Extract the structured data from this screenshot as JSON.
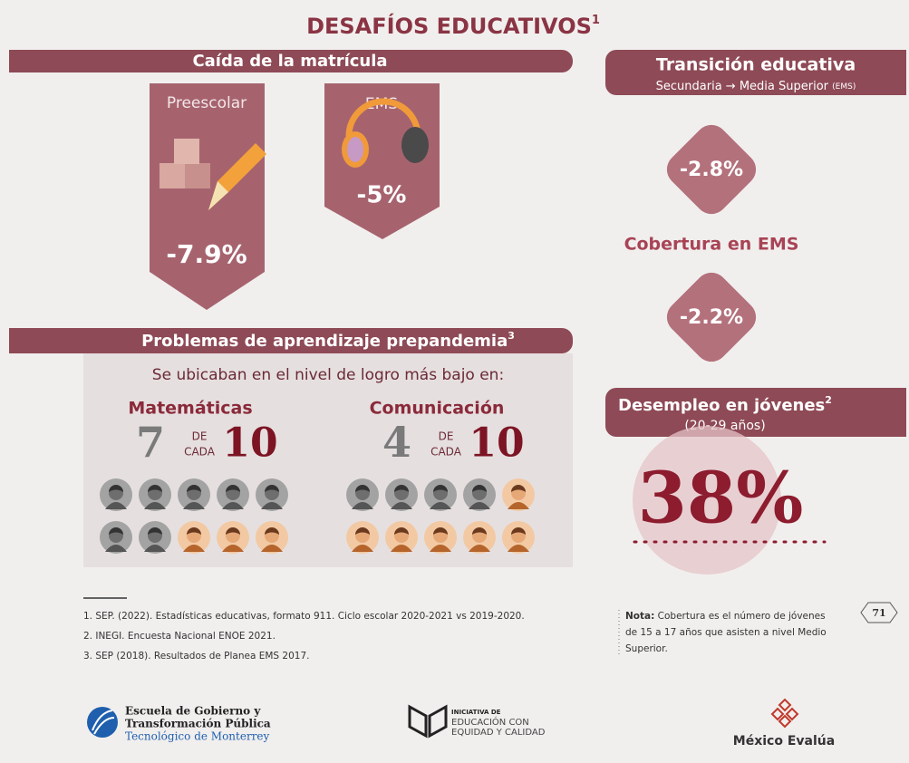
{
  "header": {
    "title": "DESAFÍOS EDUCATIVOS",
    "title_note": "1"
  },
  "enrollment": {
    "heading": "Caída de la matrícula",
    "items": [
      {
        "label": "Preescolar",
        "value": "-7.9%"
      },
      {
        "label": "EMS",
        "value": "-5%"
      }
    ]
  },
  "transition": {
    "heading": "Transición educativa",
    "subheading": "Secundaria → Media Superior",
    "subheading_note": "(EMS)",
    "value": "-2.8%"
  },
  "coverage": {
    "heading": "Cobertura en EMS",
    "value": "-2.2%"
  },
  "unemployment": {
    "heading": "Desempleo en jóvenes",
    "heading_note": "2",
    "subheading": "(20-29 años)",
    "value": "38%"
  },
  "learning": {
    "heading": "Problemas de aprendizaje prepandemia",
    "heading_note": "3",
    "subheading": "Se ubicaban en el nivel de logro más bajo en:",
    "subjects": [
      {
        "name": "Matemáticas",
        "count": "7",
        "connector_top": "DE",
        "connector_bottom": "CADA",
        "total": "10"
      },
      {
        "name": "Comunicación",
        "count": "4",
        "connector_top": "DE",
        "connector_bottom": "CADA",
        "total": "10"
      }
    ]
  },
  "footnotes": [
    "1. SEP. (2022). Estadísticas educativas, formato 911. Ciclo escolar 2020-2021 vs 2019-2020.",
    "2. INEGI. Encuesta Nacional ENOE 2021.",
    "3. SEP (2018). Resultados de Planea EMS 2017."
  ],
  "note": {
    "label": "Nota:",
    "lines": [
      "Cobertura es el número de jóvenes",
      "de 15 a 17 años que asisten a nivel Medio",
      "Superior."
    ]
  },
  "page_number": "71",
  "logos": {
    "egtp": [
      "Escuela de Gobierno y",
      "Transformación Pública",
      "Tecnológico de Monterrey"
    ],
    "iniciativa": [
      "INICIATIVA DE",
      "EDUCACIÓN CON",
      "EQUIDAD Y CALIDAD"
    ],
    "mexico_evalua": "México Evalúa"
  }
}
